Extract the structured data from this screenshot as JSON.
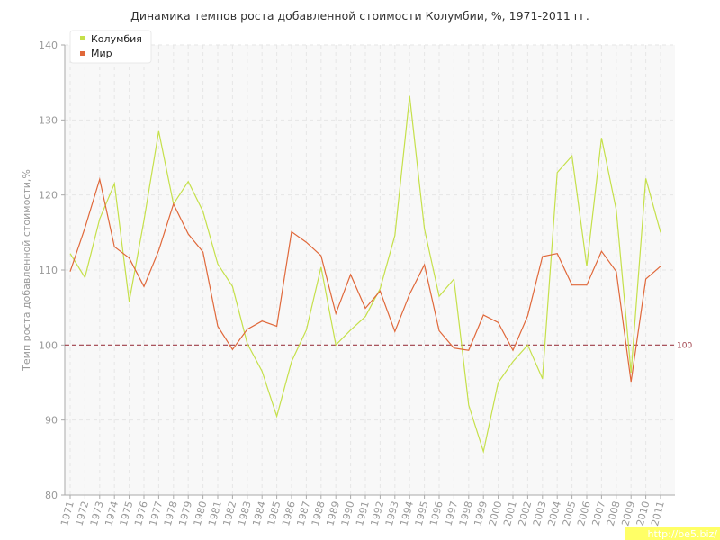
{
  "chart_data": {
    "type": "line",
    "title": "Динамика темпов роста добавленной стоимости Колумбии, %, 1971-2011 гг.",
    "xlabel": "",
    "ylabel": "Темп роста добавленной стоимости,%",
    "ylim": [
      80,
      140
    ],
    "yticks": [
      80,
      90,
      100,
      110,
      120,
      130,
      140
    ],
    "grid": true,
    "legend_position": "top-left",
    "x": [
      "1971",
      "1972",
      "1973",
      "1974",
      "1975",
      "1976",
      "1977",
      "1978",
      "1979",
      "1980",
      "1981",
      "1982",
      "1983",
      "1984",
      "1985",
      "1986",
      "1987",
      "1988",
      "1989",
      "1990",
      "1991",
      "1992",
      "1993",
      "1994",
      "1995",
      "1996",
      "1997",
      "1998",
      "1999",
      "2000",
      "2001",
      "2002",
      "2003",
      "2004",
      "2005",
      "2006",
      "2007",
      "2008",
      "2009",
      "2010",
      "2011"
    ],
    "series": [
      {
        "name": "Колумбия",
        "color": "#c5e04a",
        "values": [
          112.2,
          109.0,
          116.8,
          121.5,
          105.8,
          116.6,
          128.5,
          118.8,
          121.8,
          117.8,
          110.8,
          107.8,
          100.2,
          96.5,
          90.5,
          97.8,
          102.0,
          110.4,
          100.0,
          102.0,
          103.8,
          107.5,
          114.6,
          133.2,
          115.5,
          106.5,
          108.8,
          92.0,
          85.8,
          95.0,
          97.8,
          100.0,
          95.5,
          123.0,
          125.2,
          110.5,
          127.6,
          118.0,
          96.3,
          122.2,
          115.0
        ]
      },
      {
        "name": "Мир",
        "color": "#e0683a",
        "values": [
          109.8,
          115.6,
          122.1,
          113.1,
          111.6,
          107.8,
          112.6,
          118.8,
          114.8,
          112.4,
          102.5,
          99.4,
          102.1,
          103.2,
          102.5,
          115.1,
          113.7,
          111.9,
          104.2,
          109.4,
          104.9,
          107.2,
          101.8,
          106.8,
          110.7,
          101.9,
          99.6,
          99.3,
          104.0,
          103.0,
          99.3,
          103.9,
          111.8,
          112.2,
          108.0,
          108.0,
          112.5,
          109.8,
          95.1,
          108.8,
          110.5
        ]
      }
    ],
    "reference_line": {
      "value": 100,
      "label": "100",
      "color": "#a0404a"
    }
  },
  "watermark": "http://be5.biz/"
}
